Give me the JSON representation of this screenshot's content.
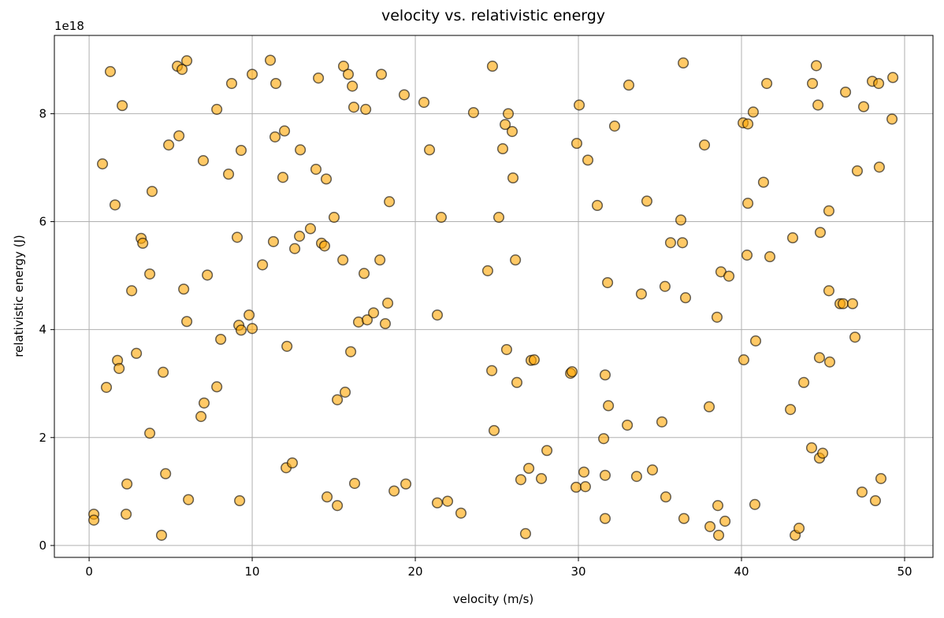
{
  "chart_data": {
    "type": "scatter",
    "title": "velocity vs. relativistic energy",
    "x_label": "velocity (m/s)",
    "y_label": "relativistic energy (J)",
    "y_offset_label": "1e18",
    "color": "orange",
    "edge_color": "black",
    "alpha": 0.6,
    "grid": true,
    "xlim": [
      -2.13,
      51.74
    ],
    "ylim": [
      -2.2e+17,
      9.45e+18
    ],
    "xticks": [
      0,
      10,
      20,
      30,
      40,
      50
    ],
    "yticks": [
      {
        "value": 0,
        "label": "0"
      },
      {
        "value": 2e+18,
        "label": "2"
      },
      {
        "value": 4e+18,
        "label": "4"
      },
      {
        "value": 6e+18,
        "label": "6"
      },
      {
        "value": 8e+18,
        "label": "8"
      }
    ],
    "x": [
      0.29,
      0.29,
      0.82,
      1.3,
      1.06,
      1.59,
      1.74,
      1.84,
      2.03,
      2.32,
      2.27,
      2.61,
      2.9,
      3.19,
      3.29,
      3.72,
      3.72,
      3.86,
      4.44,
      4.54,
      4.69,
      4.88,
      5.41,
      5.51,
      5.7,
      5.8,
      5.99,
      5.99,
      6.09,
      6.86,
      7.0,
      7.05,
      7.25,
      7.83,
      7.83,
      8.07,
      8.55,
      8.74,
      9.08,
      9.18,
      9.32,
      9.32,
      9.23,
      9.81,
      10.0,
      10.0,
      10.63,
      11.11,
      11.3,
      11.4,
      11.45,
      11.88,
      11.98,
      12.08,
      12.13,
      12.46,
      12.61,
      12.9,
      12.95,
      13.57,
      13.91,
      14.06,
      14.25,
      14.44,
      14.54,
      14.59,
      15.02,
      15.22,
      15.22,
      15.56,
      15.6,
      15.7,
      15.89,
      16.04,
      16.14,
      16.23,
      16.28,
      16.52,
      16.86,
      16.96,
      17.05,
      17.44,
      17.83,
      17.92,
      18.16,
      18.31,
      18.41,
      18.7,
      19.32,
      19.42,
      20.53,
      20.87,
      21.35,
      21.35,
      21.59,
      21.98,
      22.8,
      23.57,
      24.44,
      24.69,
      24.73,
      24.83,
      25.12,
      25.36,
      25.51,
      25.6,
      25.7,
      25.94,
      25.99,
      26.14,
      26.23,
      26.47,
      26.76,
      26.96,
      27.1,
      27.29,
      27.73,
      28.07,
      29.52,
      29.61,
      29.86,
      29.9,
      30.05,
      30.34,
      30.43,
      30.58,
      31.16,
      31.55,
      31.64,
      31.64,
      31.64,
      31.79,
      31.84,
      32.22,
      33.0,
      33.09,
      33.57,
      33.86,
      34.2,
      34.54,
      35.12,
      35.31,
      35.36,
      35.65,
      36.28,
      36.38,
      36.43,
      36.47,
      36.57,
      37.73,
      38.02,
      38.07,
      38.5,
      38.55,
      38.6,
      38.74,
      38.99,
      39.23,
      40.1,
      40.14,
      40.39,
      40.34,
      40.39,
      40.72,
      40.82,
      40.87,
      41.35,
      41.55,
      41.74,
      43.0,
      43.14,
      43.29,
      43.53,
      43.82,
      44.3,
      44.35,
      44.59,
      44.69,
      44.78,
      44.83,
      44.78,
      44.98,
      45.36,
      45.36,
      45.41,
      46.04,
      46.23,
      46.38,
      46.81,
      46.96,
      47.1,
      47.39,
      47.49,
      48.02,
      48.21,
      48.41,
      48.45,
      48.55,
      49.23,
      49.28
    ],
    "values": [
      5.8e+17,
      4.7e+17,
      7.07e+18,
      8.78e+18,
      2.93e+18,
      6.31e+18,
      3.43e+18,
      3.28e+18,
      8.15e+18,
      1.14e+18,
      5.8e+17,
      4.72e+18,
      3.56e+18,
      5.69e+18,
      5.6e+18,
      5.03e+18,
      2.08e+18,
      6.56e+18,
      1.9e+17,
      3.21e+18,
      1.33e+18,
      7.42e+18,
      8.88e+18,
      7.59e+18,
      8.82e+18,
      4.75e+18,
      8.98e+18,
      4.15e+18,
      8.5e+17,
      2.39e+18,
      7.13e+18,
      2.64e+18,
      5.01e+18,
      8.08e+18,
      2.94e+18,
      3.82e+18,
      6.88e+18,
      8.56e+18,
      5.71e+18,
      4.08e+18,
      7.32e+18,
      3.99e+18,
      8.3e+17,
      4.27e+18,
      8.73e+18,
      4.02e+18,
      5.2e+18,
      8.99e+18,
      5.63e+18,
      7.57e+18,
      8.56e+18,
      6.82e+18,
      7.68e+18,
      1.44e+18,
      3.69e+18,
      1.53e+18,
      5.5e+18,
      5.73e+18,
      7.33e+18,
      5.87e+18,
      6.97e+18,
      8.66e+18,
      5.6e+18,
      5.55e+18,
      6.79e+18,
      9e+17,
      6.08e+18,
      2.7e+18,
      7.4e+17,
      5.29e+18,
      8.88e+18,
      2.84e+18,
      8.73e+18,
      3.59e+18,
      8.51e+18,
      8.12e+18,
      1.15e+18,
      4.14e+18,
      5.04e+18,
      8.08e+18,
      4.18e+18,
      4.31e+18,
      5.29e+18,
      8.73e+18,
      4.11e+18,
      4.49e+18,
      6.37e+18,
      1.01e+18,
      8.35e+18,
      1.14e+18,
      8.21e+18,
      7.33e+18,
      4.27e+18,
      7.9e+17,
      6.08e+18,
      8.2e+17,
      6e+17,
      8.02e+18,
      5.09e+18,
      3.24e+18,
      8.88e+18,
      2.13e+18,
      6.08e+18,
      7.35e+18,
      7.8e+18,
      3.63e+18,
      8e+18,
      7.67e+18,
      6.81e+18,
      5.29e+18,
      3.02e+18,
      1.22e+18,
      2.2e+17,
      1.43e+18,
      3.43e+18,
      3.44e+18,
      1.24e+18,
      1.76e+18,
      3.19e+18,
      3.22e+18,
      1.08e+18,
      7.45e+18,
      8.16e+18,
      1.36e+18,
      1.09e+18,
      7.14e+18,
      6.3e+18,
      1.98e+18,
      3.16e+18,
      1.3e+18,
      5e+17,
      4.87e+18,
      2.59e+18,
      7.77e+18,
      2.23e+18,
      8.53e+18,
      1.28e+18,
      4.66e+18,
      6.38e+18,
      1.4e+18,
      2.29e+18,
      4.8e+18,
      9e+17,
      5.61e+18,
      6.03e+18,
      5.61e+18,
      8.94e+18,
      5e+17,
      4.59e+18,
      7.42e+18,
      2.57e+18,
      3.5e+17,
      4.23e+18,
      7.4e+17,
      1.9e+17,
      5.07e+18,
      4.5e+17,
      4.99e+18,
      7.83e+18,
      3.44e+18,
      7.81e+18,
      5.38e+18,
      6.34e+18,
      8.03e+18,
      7.6e+17,
      3.79e+18,
      6.73e+18,
      8.56e+18,
      5.35e+18,
      2.52e+18,
      5.7e+18,
      1.9e+17,
      3.2e+17,
      3.02e+18,
      1.81e+18,
      8.56e+18,
      8.89e+18,
      8.16e+18,
      3.48e+18,
      5.8e+18,
      1.62e+18,
      1.71e+18,
      4.72e+18,
      6.2e+18,
      3.4e+18,
      4.48e+18,
      4.48e+18,
      8.4e+18,
      4.48e+18,
      3.86e+18,
      6.94e+18,
      9.9e+17,
      8.13e+18,
      8.6e+18,
      8.3e+17,
      8.56e+18,
      7.01e+18,
      1.24e+18,
      7.9e+18,
      8.67e+18
    ]
  }
}
